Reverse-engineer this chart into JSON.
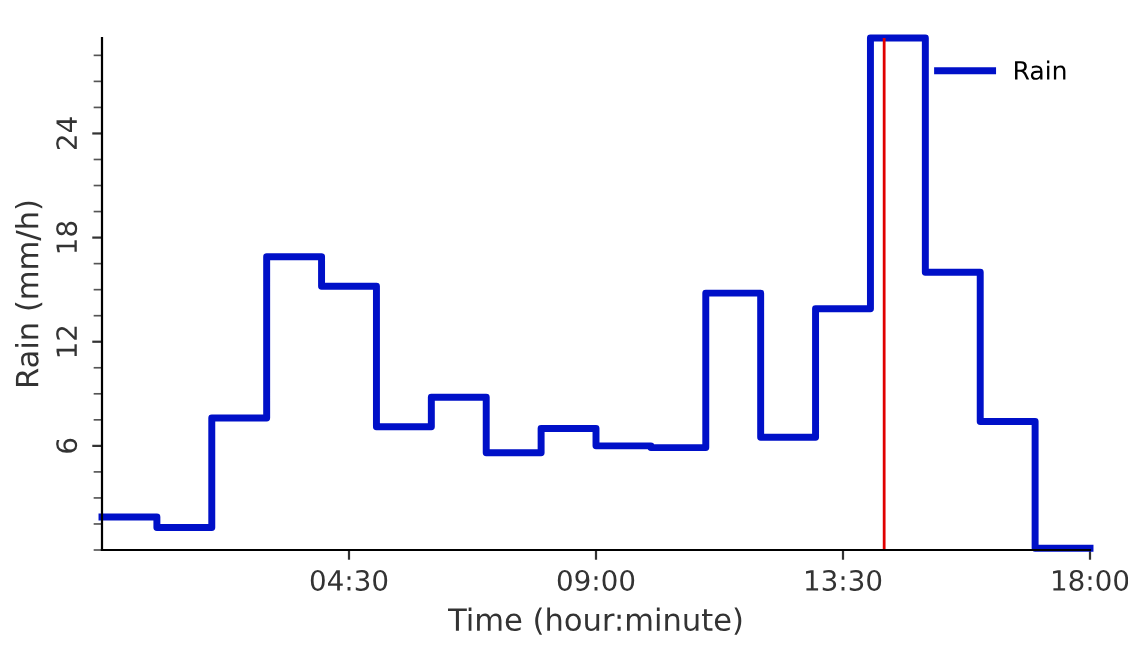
{
  "chart_data": {
    "type": "step",
    "xlabel": "Time (hour:minute)",
    "ylabel": "Rain (mm/h)",
    "x": [
      0,
      1,
      2,
      3,
      4,
      5,
      6,
      7,
      8,
      9,
      10,
      11,
      12,
      13,
      14,
      15,
      16,
      17,
      18
    ],
    "series": [
      {
        "name": "Rain",
        "color": "#0010c8",
        "values": [
          1.9,
          1.3,
          7.6,
          16.9,
          15.2,
          7.1,
          8.8,
          5.6,
          7.0,
          6.0,
          5.9,
          14.8,
          6.5,
          13.9,
          29.5,
          16.0,
          7.4,
          0.1,
          0.1
        ]
      }
    ],
    "xlim": [
      0,
      18
    ],
    "xticks": [
      {
        "value": 4.5,
        "label": "04:30"
      },
      {
        "value": 9,
        "label": "09:00"
      },
      {
        "value": 13.5,
        "label": "13:30"
      },
      {
        "value": 18,
        "label": "18:00"
      }
    ],
    "ylim": [
      0,
      29.5
    ],
    "yticks": [
      6,
      12,
      18,
      24
    ],
    "ref_lines": [
      {
        "axis": "x",
        "value": 14.25,
        "label": null,
        "color": "#e00000"
      }
    ],
    "grid": false,
    "legend": "top right"
  }
}
